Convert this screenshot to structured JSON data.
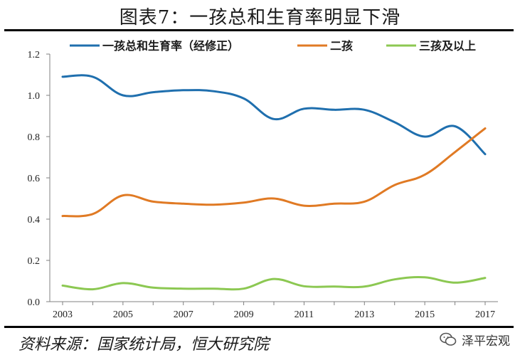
{
  "title": "图表7：一孩总和生育率明显下滑",
  "source": "资料来源：国家统计局，恒大研究院",
  "brand": {
    "label": "泽平宏观",
    "icon": "wechat-icon"
  },
  "colors": {
    "series1": "#1F6FAE",
    "series2": "#E07A24",
    "series3": "#8CC852",
    "axis": "#808080"
  },
  "chart_data": {
    "type": "line",
    "x": [
      2003,
      2004,
      2005,
      2006,
      2007,
      2008,
      2009,
      2010,
      2011,
      2012,
      2013,
      2014,
      2015,
      2016,
      2017
    ],
    "xticks": [
      "2003",
      "2005",
      "2007",
      "2009",
      "2011",
      "2013",
      "2015",
      "2017"
    ],
    "yticks": [
      "0.0",
      "0.2",
      "0.4",
      "0.6",
      "0.8",
      "1.0",
      "1.2"
    ],
    "ylim": [
      0,
      1.2
    ],
    "legend_position": "top",
    "series": [
      {
        "name": "一孩总和生育率（经修正）",
        "values": [
          1.09,
          1.09,
          1.0,
          1.015,
          1.025,
          1.02,
          0.985,
          0.885,
          0.935,
          0.93,
          0.93,
          0.87,
          0.8,
          0.85,
          0.715
        ]
      },
      {
        "name": "二孩",
        "values": [
          0.415,
          0.425,
          0.515,
          0.485,
          0.475,
          0.47,
          0.48,
          0.5,
          0.465,
          0.475,
          0.485,
          0.565,
          0.615,
          0.725,
          0.84
        ]
      },
      {
        "name": "三孩及以上",
        "values": [
          0.078,
          0.06,
          0.09,
          0.068,
          0.063,
          0.063,
          0.063,
          0.11,
          0.075,
          0.073,
          0.073,
          0.108,
          0.118,
          0.092,
          0.115
        ]
      }
    ]
  }
}
